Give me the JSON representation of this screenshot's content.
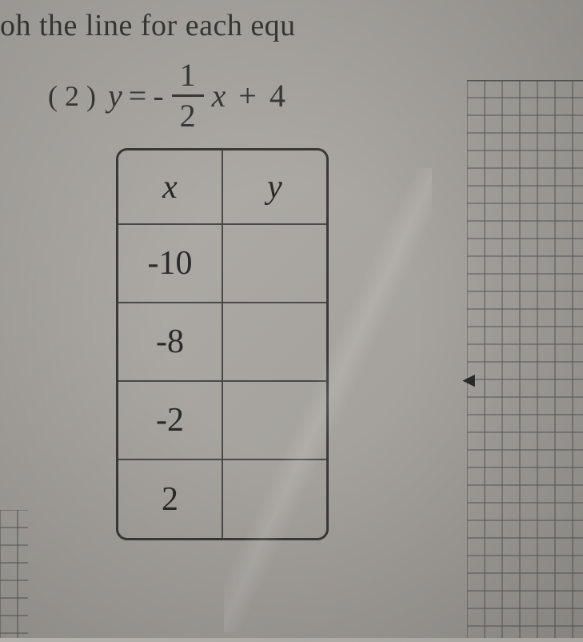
{
  "instruction_text": "oh the line for each equ",
  "problem": {
    "number": "( 2 )",
    "equation": {
      "lhs": "y",
      "equals": "=",
      "neg": "-",
      "frac_num": "1",
      "frac_den": "2",
      "var": "x",
      "plus": "+",
      "constant": "4"
    }
  },
  "table": {
    "headers": {
      "x": "x",
      "y": "y"
    },
    "rows": [
      {
        "x": "-10",
        "y": ""
      },
      {
        "x": "-8",
        "y": ""
      },
      {
        "x": "-2",
        "y": ""
      },
      {
        "x": "2",
        "y": ""
      }
    ]
  },
  "grid": {
    "cell_size": 22,
    "line_color": "#5a5a5a",
    "major_line_color": "#3a3a3a",
    "background": "transparent"
  },
  "colors": {
    "page_bg_start": "#b5b2ad",
    "page_bg_end": "#9e9b96",
    "text": "#3a3a3a",
    "table_border": "#4a4a4a"
  },
  "typography": {
    "instruction_fontsize": 38,
    "equation_fontsize": 40,
    "table_fontsize": 42,
    "font_family": "Georgia, Times New Roman, serif"
  }
}
